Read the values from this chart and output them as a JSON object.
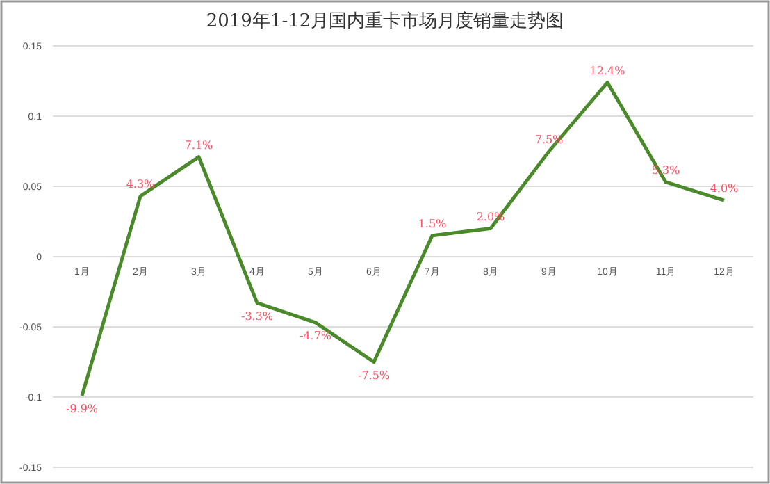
{
  "chart_data": {
    "type": "line",
    "title": "2019年1-12月国内重卡市场月度销量走势图",
    "categories": [
      "1月",
      "2月",
      "3月",
      "4月",
      "5月",
      "6月",
      "7月",
      "8月",
      "9月",
      "10月",
      "11月",
      "12月"
    ],
    "series": [
      {
        "color": "#4a8a2a",
        "values": [
          -0.099,
          0.043,
          0.071,
          -0.033,
          -0.047,
          -0.075,
          0.015,
          0.02,
          0.075,
          0.124,
          0.053,
          0.04
        ],
        "value_labels": [
          "-9.9%",
          "4.3%",
          "7.1%",
          "-3.3%",
          "-4.7%",
          "-7.5%",
          "1.5%",
          "2.0%",
          "7.5%",
          "12.4%",
          "5.3%",
          "4.0%"
        ]
      }
    ],
    "ylim": [
      -0.15,
      0.15
    ],
    "yticks": [
      {
        "value": -0.15,
        "label": "-0.15"
      },
      {
        "value": -0.1,
        "label": "-0.1"
      },
      {
        "value": -0.05,
        "label": "-0.05"
      },
      0,
      {
        "value": 0.05,
        "label": "0.05"
      },
      {
        "value": 0.1,
        "label": "0.1"
      },
      {
        "value": 0.15,
        "label": "0.15"
      }
    ],
    "grid": "y",
    "line_style": "solid"
  }
}
